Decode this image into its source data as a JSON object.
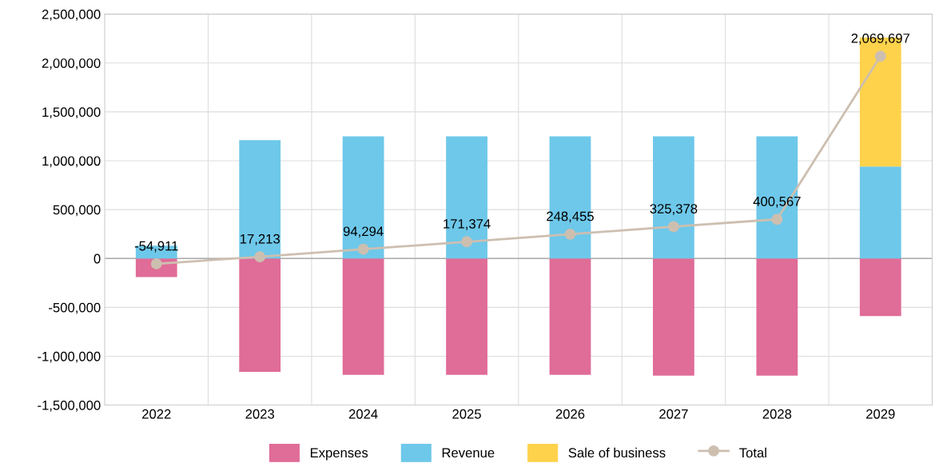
{
  "chart_data": {
    "type": "bar",
    "stacked": true,
    "categories": [
      "2022",
      "2023",
      "2024",
      "2025",
      "2026",
      "2027",
      "2028",
      "2029"
    ],
    "series": [
      {
        "name": "Expenses",
        "color": "#e06c98",
        "values": [
          -190000,
          -1160000,
          -1190000,
          -1190000,
          -1190000,
          -1200000,
          -1200000,
          -590000
        ]
      },
      {
        "name": "Revenue",
        "color": "#6ec8ea",
        "values": [
          130000,
          1210000,
          1250000,
          1250000,
          1250000,
          1250000,
          1250000,
          940000
        ]
      },
      {
        "name": "Sale of business",
        "color": "#ffd24c",
        "values": [
          null,
          null,
          null,
          null,
          null,
          null,
          null,
          1320000
        ]
      },
      {
        "name": "Total",
        "type": "line",
        "color": "#cdbfb0",
        "marker": "circle",
        "values": [
          -54911,
          17213,
          94294,
          171374,
          248455,
          325378,
          400567,
          2069697
        ],
        "value_labels": [
          "-54,911",
          "17,213",
          "94,294",
          "171,374",
          "248,455",
          "325,378",
          "400,567",
          "2,069,697"
        ]
      }
    ],
    "ylim": [
      -1500000,
      2500000
    ],
    "yticks": [
      {
        "value": -1500000,
        "label": "-1,500,000"
      },
      {
        "value": -1000000,
        "label": "-1,000,000"
      },
      {
        "value": -500000,
        "label": "-500,000"
      },
      {
        "value": 0,
        "label": "0"
      },
      {
        "value": 500000,
        "label": "500,000"
      },
      {
        "value": 1000000,
        "label": "1,000,000"
      },
      {
        "value": 1500000,
        "label": "1,500,000"
      },
      {
        "value": 2000000,
        "label": "2,000,000"
      },
      {
        "value": 2500000,
        "label": "2,500,000"
      }
    ],
    "grid": true,
    "legend": "bottom"
  }
}
